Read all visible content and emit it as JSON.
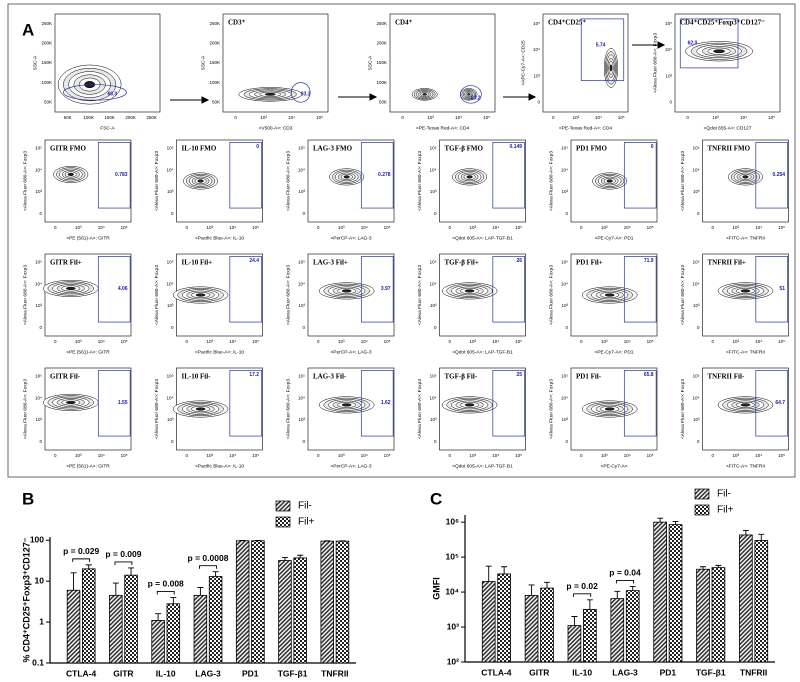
{
  "panel_a": {
    "label": "A",
    "flow_ticks": [
      "0",
      "10³",
      "10⁴",
      "10⁵"
    ],
    "scatter_ticks": [
      "50K",
      "100K",
      "150K",
      "200K",
      "250K"
    ],
    "gating": [
      {
        "x_label": "FSC-A",
        "y_label": "SSC-A",
        "gate": "66.0"
      },
      {
        "title": "CD3⁺",
        "x_label": "<V500-A>: CD3",
        "y_label": "SSC-A",
        "gate": "93.3"
      },
      {
        "title": "CD4⁺",
        "x_label": "<PE-Texas Red-A>: CD4",
        "y_label": "SSC-A",
        "gate": "83.2"
      },
      {
        "title": "CD4⁺CD25⁺",
        "x_label": "<PE-Texas Red-A>: CD4",
        "y_label": "<APC-Cy7-A>: CD25",
        "gate": "5.74"
      },
      {
        "title": "CD4⁺CD25⁺Foxp3⁺CD127⁻",
        "x_label": "<Qdot 655-A>: CD127",
        "y_label": "<Alexa Fluor 680-A>: Foxp3",
        "gate": "62.0"
      }
    ],
    "rows": [
      [
        {
          "title": "GITR FMO",
          "x_label": "<PE (561)-A>: GITR",
          "y_label": "<Alexa Fluor 680-A>: Foxp3",
          "gate": "0.783"
        },
        {
          "title": "IL-10 FMO",
          "x_label": "<Pacific Blue-A>: IL-10",
          "y_label": "<Alexa Fluor 680-A>: Foxp3",
          "gate": "0"
        },
        {
          "title": "LAG-3 FMO",
          "x_label": "<PerCP-A>: LAG-3",
          "y_label": "<Alexa Fluor 680-A>: Foxp3",
          "gate": "0.278"
        },
        {
          "title": "TGF-β FMO",
          "x_label": "<Qdot 605-A>: LAP-TGF-B1",
          "y_label": "<Alexa Fluor 680-A>: Foxp3",
          "gate": "0.149"
        },
        {
          "title": "PD1 FMO",
          "x_label": "<PE-Cy7-A>: PD1",
          "y_label": "<Alexa Fluor 680-A>: Foxp3",
          "gate": "0"
        },
        {
          "title": "TNFRII FMO",
          "x_label": "<FITC-A>: TNFRII",
          "y_label": "<Alexa Fluor 680-A>: Foxp3",
          "gate": "0.254"
        }
      ],
      [
        {
          "title": "GITR Fil+",
          "x_label": "<PE (561)-A>: GITR",
          "y_label": "<Alexa Fluor 680-A>: Foxp3",
          "gate": "4.06"
        },
        {
          "title": "IL-10 Fil+",
          "x_label": "<Pacific Blue-A>: IL-10",
          "y_label": "<Alexa Fluor 680-A>: Foxp3",
          "gate": "24.4"
        },
        {
          "title": "LAG-3 Fil+",
          "x_label": "<PerCP-A>: LAG-3",
          "y_label": "<Alexa Fluor 680-A>: Foxp3",
          "gate": "3.97"
        },
        {
          "title": "TGF-β Fil+",
          "x_label": "<Qdot 605-A>: LAP-TGF-B1",
          "y_label": "<Alexa Fluor 680-A>: Foxp3",
          "gate": "26"
        },
        {
          "title": "PD1 Fil+",
          "x_label": "<PE-Cy7-A>: PD1",
          "y_label": "<Alexa Fluor 680-A>: Foxp3",
          "gate": "71.9"
        },
        {
          "title": "TNFRII Fil+",
          "x_label": "<FITC-A>: TNFRII",
          "y_label": "<Alexa Fluor 680-A>: Foxp3",
          "gate": "51"
        }
      ],
      [
        {
          "title": "GITR Fil-",
          "x_label": "<PE (561)-A>: GITR",
          "y_label": "<Alexa Fluor 680-A>: Foxp3",
          "gate": "1.55"
        },
        {
          "title": "IL-10 Fil-",
          "x_label": "<Pacific Blue-A>: IL-10",
          "y_label": "<Alexa Fluor 680-A>: Foxp3",
          "gate": "17.2"
        },
        {
          "title": "LAG-3 Fil-",
          "x_label": "<PerCP-A>: LAG-3",
          "y_label": "<Alexa Fluor 680-A>: Foxp3",
          "gate": "1.62"
        },
        {
          "title": "TGF-β Fil-",
          "x_label": "<Qdot 605-A>: LAP-TGF-B1",
          "y_label": "<Alexa Fluor 680-A>: Foxp3",
          "gate": "25"
        },
        {
          "title": "PD1 Fil-",
          "x_label": "<PE-Cy7-A>",
          "y_label": "<Alexa Fluor 680-A>: Foxp3",
          "gate": "65.8"
        },
        {
          "title": "TNFRII Fil-",
          "x_label": "<FITC-A>: TNFRII",
          "y_label": "<Alexa Fluor 680-A>: Foxp3",
          "gate": "64.7"
        }
      ]
    ]
  },
  "chart_data": [
    {
      "type": "bar",
      "panel": "B",
      "log_scale": true,
      "y_label": "% CD4⁺CD25⁺Foxp3⁺CD127⁻",
      "categories": [
        "CTLA-4",
        "GITR",
        "IL-10",
        "LAG-3",
        "PD1",
        "TGF-β1",
        "TNFRII"
      ],
      "series": [
        {
          "name": "Fil-",
          "pattern": "stripes",
          "values": [
            6,
            4.5,
            1.1,
            4.5,
            97,
            32,
            95
          ],
          "errors": [
            10,
            4.5,
            0.5,
            2.5,
            2,
            6,
            2
          ]
        },
        {
          "name": "Fil+",
          "pattern": "checks",
          "values": [
            20,
            14,
            2.8,
            13,
            97,
            37,
            95
          ],
          "errors": [
            5,
            7,
            1.2,
            4,
            2,
            6,
            2
          ]
        }
      ],
      "ylim": [
        0.1,
        120
      ],
      "yticks": [
        0.1,
        1,
        10,
        100
      ],
      "annotations": [
        {
          "text": "p = 0.029",
          "category": "CTLA-4"
        },
        {
          "text": "p = 0.009",
          "category": "GITR"
        },
        {
          "text": "p = 0.008",
          "category": "IL-10"
        },
        {
          "text": "p = 0.0008",
          "category": "LAG-3"
        }
      ]
    },
    {
      "type": "bar",
      "panel": "C",
      "log_scale": true,
      "y_label": "GMFI",
      "categories": [
        "CTLA-4",
        "GITR",
        "IL-10",
        "LAG-3",
        "PD1",
        "TGF-β1",
        "TNFRII"
      ],
      "series": [
        {
          "name": "Fil-",
          "pattern": "stripes",
          "values": [
            20000,
            8000,
            1100,
            6500,
            1000000,
            45000,
            430000
          ],
          "errors": [
            35000,
            8000,
            900,
            4000,
            300000,
            8000,
            150000
          ]
        },
        {
          "name": "Fil+",
          "pattern": "checks",
          "values": [
            33000,
            13000,
            3200,
            11000,
            850000,
            50000,
            300000
          ],
          "errors": [
            20000,
            6000,
            2800,
            3500,
            200000,
            8000,
            150000
          ]
        }
      ],
      "ylim": [
        100,
        1600000
      ],
      "yticks": [
        {
          "value": 100,
          "label": "10²"
        },
        {
          "value": 1000,
          "label": "10³"
        },
        {
          "value": 10000,
          "label": "10⁴"
        },
        {
          "value": 100000,
          "label": "10⁵"
        },
        {
          "value": 1000000,
          "label": "10⁶"
        }
      ],
      "annotations": [
        {
          "text": "p = 0.02",
          "category": "IL-10"
        },
        {
          "text": "p = 0.04",
          "category": "LAG-3"
        }
      ]
    }
  ]
}
